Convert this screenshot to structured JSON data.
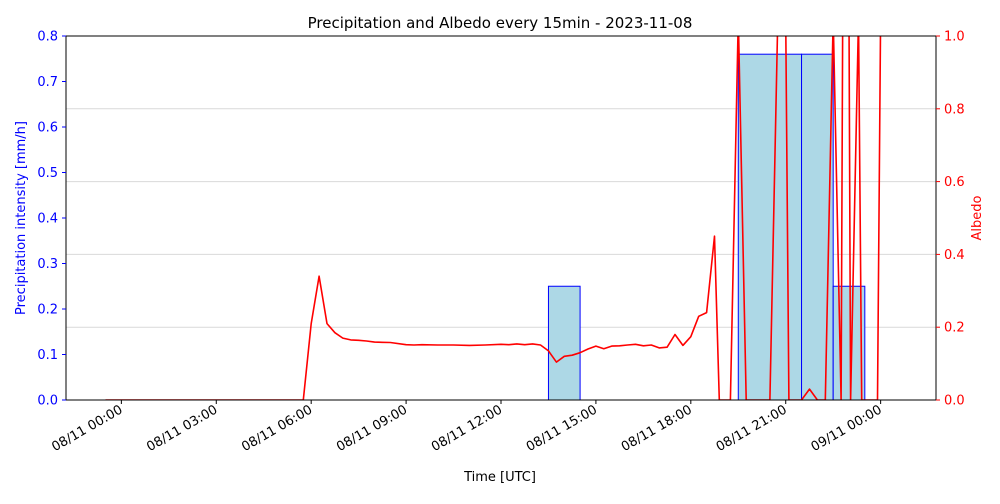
{
  "chart_data": {
    "type": "bar+line",
    "title": "Precipitation and Albedo every 15min - 2023-11-08",
    "xlabel": "Time [UTC]",
    "ylabel_left": "Precipitation intensity [mm/h]",
    "ylabel_right": "Albedo",
    "x_ticks": [
      {
        "hour": 0,
        "label": "08/11 00:00"
      },
      {
        "hour": 3,
        "label": "08/11 03:00"
      },
      {
        "hour": 6,
        "label": "08/11 06:00"
      },
      {
        "hour": 9,
        "label": "08/11 09:00"
      },
      {
        "hour": 12,
        "label": "08/11 12:00"
      },
      {
        "hour": 15,
        "label": "08/11 15:00"
      },
      {
        "hour": 18,
        "label": "08/11 18:00"
      },
      {
        "hour": 21,
        "label": "08/11 21:00"
      },
      {
        "hour": 24,
        "label": "09/11 00:00"
      }
    ],
    "xlim_hours": [
      -1.75,
      25.75
    ],
    "ylim_left": [
      0,
      0.8
    ],
    "yticks_left": [
      "0.0",
      "0.1",
      "0.2",
      "0.3",
      "0.4",
      "0.5",
      "0.6",
      "0.7",
      "0.8"
    ],
    "ylim_right": [
      0,
      1.0
    ],
    "yticks_right": [
      "0.0",
      "0.2",
      "0.4",
      "0.6",
      "0.8",
      "1.0"
    ],
    "grid_right_y": [
      0.2,
      0.4,
      0.6,
      0.8
    ],
    "precipitation": {
      "name": "Precipitation intensity",
      "color": "#add8e6",
      "edge_color": "#0000ff",
      "bars": [
        {
          "start_hour": 13.5,
          "end_hour": 14.5,
          "value": 0.25
        },
        {
          "start_hour": 19.5,
          "end_hour": 21.5,
          "value": 0.76
        },
        {
          "start_hour": 21.5,
          "end_hour": 22.5,
          "value": 0.76
        },
        {
          "start_hour": 22.5,
          "end_hour": 23.5,
          "value": 0.25
        }
      ]
    },
    "albedo": {
      "name": "Albedo",
      "color": "#ff0000",
      "points": [
        [
          -0.5,
          0
        ],
        [
          5.75,
          0
        ],
        [
          6.0,
          0.21
        ],
        [
          6.25,
          0.34
        ],
        [
          6.5,
          0.21
        ],
        [
          6.75,
          0.185
        ],
        [
          7.0,
          0.17
        ],
        [
          7.25,
          0.165
        ],
        [
          7.5,
          0.164
        ],
        [
          7.75,
          0.162
        ],
        [
          8.0,
          0.159
        ],
        [
          8.5,
          0.158
        ],
        [
          9.0,
          0.152
        ],
        [
          9.25,
          0.151
        ],
        [
          9.5,
          0.152
        ],
        [
          10.0,
          0.151
        ],
        [
          10.5,
          0.151
        ],
        [
          11.0,
          0.15
        ],
        [
          11.5,
          0.151
        ],
        [
          12.0,
          0.153
        ],
        [
          12.25,
          0.152
        ],
        [
          12.5,
          0.154
        ],
        [
          12.75,
          0.152
        ],
        [
          13.0,
          0.154
        ],
        [
          13.25,
          0.151
        ],
        [
          13.5,
          0.135
        ],
        [
          13.75,
          0.104
        ],
        [
          14.0,
          0.12
        ],
        [
          14.25,
          0.123
        ],
        [
          14.5,
          0.13
        ],
        [
          14.75,
          0.14
        ],
        [
          15.0,
          0.148
        ],
        [
          15.25,
          0.141
        ],
        [
          15.5,
          0.148
        ],
        [
          15.75,
          0.149
        ],
        [
          16.0,
          0.151
        ],
        [
          16.25,
          0.153
        ],
        [
          16.5,
          0.149
        ],
        [
          16.75,
          0.151
        ],
        [
          17.0,
          0.143
        ],
        [
          17.25,
          0.145
        ],
        [
          17.5,
          0.18
        ],
        [
          17.75,
          0.15
        ],
        [
          18.0,
          0.174
        ],
        [
          18.25,
          0.23
        ],
        [
          18.5,
          0.24
        ],
        [
          18.75,
          0.45
        ],
        [
          18.9,
          0.0
        ],
        [
          19.25,
          0.0
        ],
        [
          19.5,
          1.05
        ],
        [
          19.75,
          0.0
        ],
        [
          20.5,
          0.0
        ],
        [
          20.75,
          1.05
        ],
        [
          21.0,
          1.05
        ],
        [
          21.1,
          0.0
        ],
        [
          21.5,
          0.0
        ],
        [
          21.75,
          0.03
        ],
        [
          22.0,
          0.0
        ],
        [
          22.25,
          0.0
        ],
        [
          22.5,
          1.05
        ],
        [
          22.75,
          0.0
        ],
        [
          22.8,
          1.05
        ],
        [
          23.0,
          1.05
        ],
        [
          23.05,
          0.0
        ],
        [
          23.3,
          1.05
        ],
        [
          23.4,
          0.0
        ],
        [
          23.9,
          0.0
        ],
        [
          24.0,
          1.05
        ]
      ]
    },
    "colors": {
      "left_axis": "#0000ff",
      "right_axis": "#ff0000"
    }
  }
}
